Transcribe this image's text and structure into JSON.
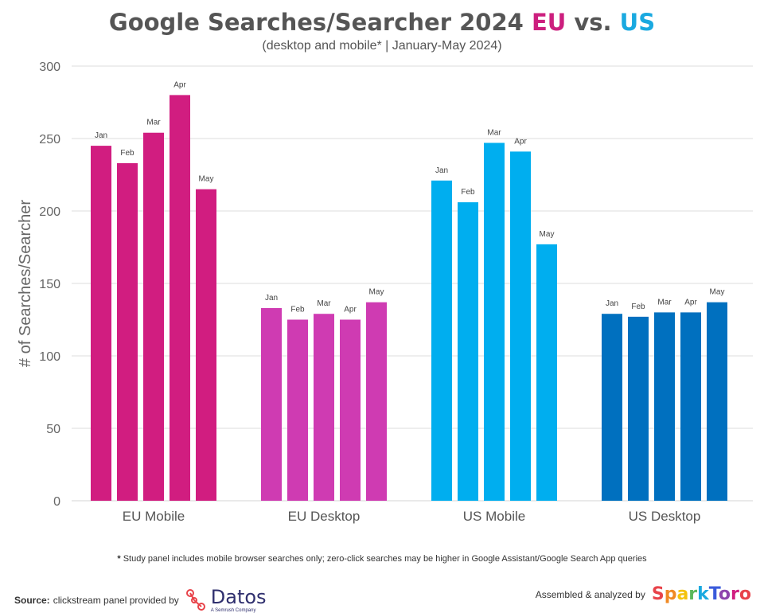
{
  "title_parts": {
    "main": "Google Searches/Searcher 2024 ",
    "eu": "EU",
    "vs": " vs. ",
    "us": "US"
  },
  "subtitle": "(desktop and mobile* | January-May 2024)",
  "colors": {
    "eu_title": "#cc1f7e",
    "us_title": "#1aa9e0",
    "eu_mobile": "#d11d80",
    "eu_desktop": "#cf3bb2",
    "us_mobile": "#00aeef",
    "us_desktop": "#0070bf",
    "grid": "#dddddd"
  },
  "chart_data": {
    "type": "bar",
    "ylabel": "# of Searches/Searcher",
    "xlabel": "",
    "ylim": [
      0,
      300
    ],
    "yticks": [
      0,
      50,
      100,
      150,
      200,
      250,
      300
    ],
    "grid": true,
    "groups": [
      {
        "name": "EU Mobile",
        "color_key": "eu_mobile",
        "months": [
          "Jan",
          "Feb",
          "Mar",
          "Apr",
          "May"
        ],
        "values": [
          245,
          233,
          254,
          280,
          215
        ]
      },
      {
        "name": "EU Desktop",
        "color_key": "eu_desktop",
        "months": [
          "Jan",
          "Feb",
          "Mar",
          "Apr",
          "May"
        ],
        "values": [
          133,
          125,
          129,
          125,
          137
        ]
      },
      {
        "name": "US Mobile",
        "color_key": "us_mobile",
        "months": [
          "Jan",
          "Feb",
          "Mar",
          "Apr",
          "May"
        ],
        "values": [
          221,
          206,
          247,
          241,
          177
        ]
      },
      {
        "name": "US Desktop",
        "color_key": "us_desktop",
        "months": [
          "Jan",
          "Feb",
          "Mar",
          "Apr",
          "May"
        ],
        "values": [
          129,
          127,
          130,
          130,
          137
        ]
      }
    ]
  },
  "footnote": {
    "marker": "*",
    "text": "Study panel includes mobile browser searches only; zero-click searches may be higher in Google Assistant/Google Search App queries"
  },
  "source": {
    "label": "Source:",
    "text": "clickstream panel provided by",
    "brand": "Datos",
    "brand_sub": "A Semrush Company",
    "brand_icon": "datos-logo-icon"
  },
  "credit": {
    "text": "Assembled & analyzed by",
    "brand": "SparkToro"
  }
}
